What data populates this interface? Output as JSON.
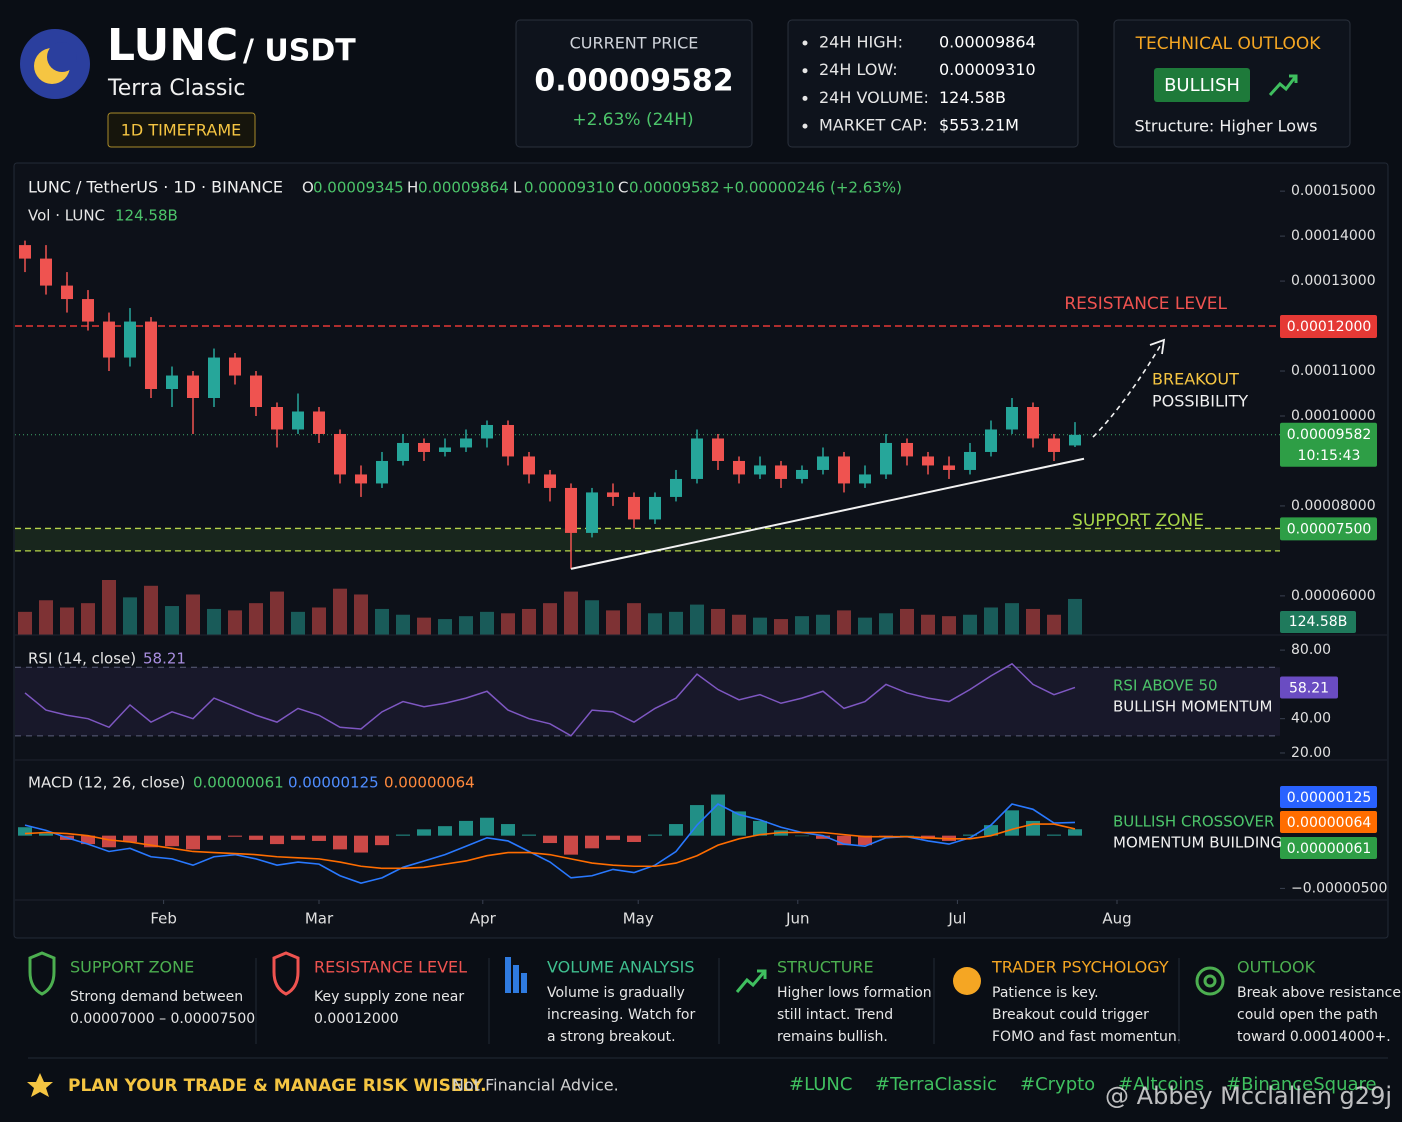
{
  "header": {
    "symbol": "LUNC",
    "pair": "/ USDT",
    "name": "Terra Classic",
    "timeframe": "1D TIMEFRAME"
  },
  "price_box": {
    "title": "CURRENT PRICE",
    "price": "0.00009582",
    "change": "+2.63% (24H)"
  },
  "stats": [
    {
      "label": "24H HIGH:",
      "value": "0.00009864"
    },
    {
      "label": "24H LOW:",
      "value": "0.00009310"
    },
    {
      "label": "24H VOLUME:",
      "value": "124.58B"
    },
    {
      "label": "MARKET CAP:",
      "value": "$553.21M"
    }
  ],
  "outlook": {
    "title": "TECHNICAL OUTLOOK",
    "badge": "BULLISH",
    "structure": "Structure: Higher Lows"
  },
  "chart_data": {
    "type": "candlestick",
    "title": "LUNC / TetherUS · 1D · BINANCE",
    "ohlc_legend": [
      {
        "key": "O",
        "value": "0.00009345"
      },
      {
        "key": "H",
        "value": "0.00009864"
      },
      {
        "key": "L",
        "value": "0.00009310"
      },
      {
        "key": "C",
        "value": "0.00009582"
      }
    ],
    "change": "+0.00000246 (+2.63%)",
    "up_color": "#26a69a",
    "down_color": "#ef5350",
    "candles": [
      [
        0.000138,
        0.000139,
        0.000132,
        0.000135
      ],
      [
        0.000135,
        0.000138,
        0.000127,
        0.000129
      ],
      [
        0.000129,
        0.000132,
        0.000123,
        0.000126
      ],
      [
        0.000126,
        0.000128,
        0.000119,
        0.000121
      ],
      [
        0.000121,
        0.000123,
        0.00011,
        0.000113
      ],
      [
        0.000113,
        0.000124,
        0.000111,
        0.000121
      ],
      [
        0.000121,
        0.000122,
        0.000104,
        0.000106
      ],
      [
        0.000106,
        0.000111,
        0.000102,
        0.000109
      ],
      [
        0.000109,
        0.00011,
        9.6e-05,
        0.000104
      ],
      [
        0.000104,
        0.000115,
        0.000102,
        0.000113
      ],
      [
        0.000113,
        0.000114,
        0.000107,
        0.000109
      ],
      [
        0.000109,
        0.00011,
        0.0001,
        0.000102
      ],
      [
        0.000102,
        0.000103,
        9.3e-05,
        9.7e-05
      ],
      [
        9.7e-05,
        0.000105,
        9.6e-05,
        0.000101
      ],
      [
        0.000101,
        0.000102,
        9.4e-05,
        9.6e-05
      ],
      [
        9.6e-05,
        9.7e-05,
        8.5e-05,
        8.7e-05
      ],
      [
        8.7e-05,
        8.9e-05,
        8.2e-05,
        8.5e-05
      ],
      [
        8.5e-05,
        9.2e-05,
        8.4e-05,
        9e-05
      ],
      [
        9e-05,
        9.6e-05,
        8.9e-05,
        9.4e-05
      ],
      [
        9.4e-05,
        9.5e-05,
        9e-05,
        9.2e-05
      ],
      [
        9.2e-05,
        9.5e-05,
        9.1e-05,
        9.3e-05
      ],
      [
        9.3e-05,
        9.7e-05,
        9.2e-05,
        9.5e-05
      ],
      [
        9.5e-05,
        9.9e-05,
        9.3e-05,
        9.8e-05
      ],
      [
        9.8e-05,
        9.9e-05,
        8.9e-05,
        9.1e-05
      ],
      [
        9.1e-05,
        9.2e-05,
        8.5e-05,
        8.7e-05
      ],
      [
        8.7e-05,
        8.8e-05,
        8.1e-05,
        8.4e-05
      ],
      [
        8.4e-05,
        8.5e-05,
        6.6e-05,
        7.4e-05
      ],
      [
        7.4e-05,
        8.4e-05,
        7.3e-05,
        8.3e-05
      ],
      [
        8.3e-05,
        8.5e-05,
        8e-05,
        8.2e-05
      ],
      [
        8.2e-05,
        8.3e-05,
        7.5e-05,
        7.7e-05
      ],
      [
        7.7e-05,
        8.3e-05,
        7.6e-05,
        8.2e-05
      ],
      [
        8.2e-05,
        8.8e-05,
        8.1e-05,
        8.6e-05
      ],
      [
        8.6e-05,
        9.7e-05,
        8.5e-05,
        9.5e-05
      ],
      [
        9.5e-05,
        9.6e-05,
        8.8e-05,
        9e-05
      ],
      [
        9e-05,
        9.1e-05,
        8.5e-05,
        8.7e-05
      ],
      [
        8.7e-05,
        9.1e-05,
        8.6e-05,
        8.9e-05
      ],
      [
        8.9e-05,
        9e-05,
        8.4e-05,
        8.6e-05
      ],
      [
        8.6e-05,
        8.9e-05,
        8.5e-05,
        8.8e-05
      ],
      [
        8.8e-05,
        9.3e-05,
        8.7e-05,
        9.1e-05
      ],
      [
        9.1e-05,
        9.2e-05,
        8.3e-05,
        8.5e-05
      ],
      [
        8.5e-05,
        8.9e-05,
        8.4e-05,
        8.7e-05
      ],
      [
        8.7e-05,
        9.6e-05,
        8.6e-05,
        9.4e-05
      ],
      [
        9.4e-05,
        9.5e-05,
        8.9e-05,
        9.1e-05
      ],
      [
        9.1e-05,
        9.2e-05,
        8.7e-05,
        8.9e-05
      ],
      [
        8.9e-05,
        9.1e-05,
        8.6e-05,
        8.8e-05
      ],
      [
        8.8e-05,
        9.4e-05,
        8.7e-05,
        9.2e-05
      ],
      [
        9.2e-05,
        9.9e-05,
        9.1e-05,
        9.7e-05
      ],
      [
        9.7e-05,
        0.000104,
        9.6e-05,
        0.000102
      ],
      [
        0.000102,
        0.000103,
        9.3e-05,
        9.5e-05
      ],
      [
        9.5e-05,
        9.6e-05,
        9e-05,
        9.2e-05
      ],
      [
        9.345e-05,
        9.864e-05,
        9.31e-05,
        9.582e-05
      ]
    ],
    "last_price_time": "10:15:43",
    "xticks": [
      {
        "value": 6.6,
        "label": "Feb"
      },
      {
        "value": 14,
        "label": "Mar"
      },
      {
        "value": 21.8,
        "label": "Apr"
      },
      {
        "value": 29.2,
        "label": "May"
      },
      {
        "value": 36.8,
        "label": "Jun"
      },
      {
        "value": 44.4,
        "label": "Jul"
      },
      {
        "value": 52,
        "label": "Aug"
      }
    ],
    "ylim": [
      5.13e-05,
      0.0001547
    ],
    "yticks": [
      {
        "value": 0.00015,
        "label": "0.00015000"
      },
      {
        "value": 0.00014,
        "label": "0.00014000"
      },
      {
        "value": 0.00013,
        "label": "0.00013000"
      },
      {
        "value": 0.00011,
        "label": "0.00011000"
      },
      {
        "value": 0.0001,
        "label": "0.00010000"
      },
      {
        "value": 8e-05,
        "label": "0.00008000"
      },
      {
        "value": 6e-05,
        "label": "0.00006000"
      }
    ],
    "grid": false,
    "annotations": {
      "resistance": {
        "text": "RESISTANCE LEVEL",
        "value": 0.00012,
        "label": "0.00012000"
      },
      "support": {
        "text": "SUPPORT ZONE",
        "values": [
          7e-05,
          7.5e-05
        ],
        "label": "0.00007500"
      },
      "breakout": [
        "BREAKOUT",
        "POSSIBILITY"
      ],
      "trendline": {
        "from": [
          26,
          6.6e-05
        ],
        "to": [
          52,
          9.05e-05
        ]
      }
    },
    "volume": {
      "title": "Vol · LUNC",
      "last_label": "124.58B",
      "values": [
        80,
        120,
        95,
        110,
        190,
        130,
        170,
        100,
        140,
        90,
        85,
        110,
        150,
        80,
        95,
        160,
        140,
        90,
        70,
        60,
        55,
        65,
        80,
        75,
        90,
        110,
        150,
        120,
        85,
        110,
        75,
        80,
        105,
        90,
        70,
        60,
        55,
        65,
        70,
        85,
        60,
        75,
        90,
        70,
        65,
        70,
        95,
        110,
        90,
        70,
        124.58
      ]
    },
    "rsi": {
      "title": "RSI (14, close)",
      "color": "#7e57c2",
      "values": [
        55,
        45,
        42,
        40,
        35,
        48,
        38,
        44,
        40,
        52,
        47,
        42,
        38,
        46,
        42,
        35,
        34,
        44,
        50,
        47,
        49,
        52,
        56,
        45,
        40,
        37,
        30,
        45,
        44,
        38,
        46,
        52,
        66,
        57,
        51,
        54,
        49,
        52,
        56,
        46,
        50,
        60,
        55,
        52,
        50,
        57,
        65,
        72,
        60,
        54,
        58.21
      ],
      "ylim": [
        15.9,
        85.9
      ],
      "yticks": [
        {
          "value": 80,
          "label": "80.00"
        },
        {
          "value": 40,
          "label": "40.00"
        },
        {
          "value": 20,
          "label": "20.00"
        }
      ],
      "levels": [
        70,
        30
      ],
      "note": [
        "RSI ABOVE 50",
        "BULLISH MOMENTUM"
      ]
    },
    "macd": {
      "title": "MACD (12, 26, close)",
      "ylim": [
        -6.1e-06,
        6.7e-06
      ],
      "yticks": [
        {
          "value": -5e-06,
          "label": "−0.00000500"
        }
      ],
      "histogram": {
        "color": "#26a69a",
        "neg_color": "#ef5350",
        "last_label": "0.00000061",
        "values": [
          8e-07,
          2e-07,
          -4e-07,
          -8e-07,
          -1.1e-06,
          -6e-07,
          -1.1e-06,
          -1e-06,
          -1.3e-06,
          -4e-07,
          -1e-07,
          -4e-07,
          -8e-07,
          -4e-07,
          -5e-07,
          -1.3e-06,
          -1.6e-06,
          -9e-07,
          1e-07,
          6e-07,
          9e-07,
          1.4e-06,
          1.7e-06,
          1.1e-06,
          1e-07,
          -7e-07,
          -1.8e-06,
          -1.2e-06,
          -4e-07,
          -6e-07,
          1e-07,
          1.1e-06,
          2.9e-06,
          3.9e-06,
          2.3e-06,
          1.4e-06,
          5e-07,
          0,
          -3e-07,
          -9e-07,
          -9e-07,
          -1e-07,
          0,
          -3e-07,
          -5e-07,
          1e-07,
          1e-06,
          2.4e-06,
          1.4e-06,
          1e-07,
          6.1e-07
        ]
      },
      "macd": {
        "color": "#2979ff",
        "last_label": "0.00000125",
        "values": [
          1e-06,
          5e-07,
          -2e-07,
          -8e-07,
          -1.5e-06,
          -1.2e-06,
          -2e-06,
          -2.2e-06,
          -2.8e-06,
          -2e-06,
          -1.8e-06,
          -2.2e-06,
          -2.8e-06,
          -2.5e-06,
          -2.7e-06,
          -3.8e-06,
          -4.5e-06,
          -4e-06,
          -3e-06,
          -2.4e-06,
          -1.8e-06,
          -1e-06,
          -2e-07,
          -5e-07,
          -1.5e-06,
          -2.5e-06,
          -4e-06,
          -3.8e-06,
          -3.2e-06,
          -3.5e-06,
          -2.8e-06,
          -1.5e-06,
          1e-06,
          3e-06,
          2e-06,
          1.5e-06,
          8e-07,
          3e-07,
          0,
          -8e-07,
          -1e-06,
          -2e-07,
          -1e-07,
          -5e-07,
          -8e-07,
          -2e-07,
          1e-06,
          3e-06,
          2.5e-06,
          1.2e-06,
          1.25e-06
        ]
      },
      "signal": {
        "color": "#ff6d00",
        "last_label": "0.00000064",
        "values": [
          2e-07,
          3e-07,
          2e-07,
          0,
          -4e-07,
          -6e-07,
          -9e-07,
          -1.2e-06,
          -1.5e-06,
          -1.6e-06,
          -1.7e-06,
          -1.8e-06,
          -2e-06,
          -2.1e-06,
          -2.2e-06,
          -2.5e-06,
          -2.9e-06,
          -3.1e-06,
          -3.1e-06,
          -3e-06,
          -2.7e-06,
          -2.4e-06,
          -1.9e-06,
          -1.6e-06,
          -1.6e-06,
          -1.8e-06,
          -2.2e-06,
          -2.6e-06,
          -2.8e-06,
          -2.9e-06,
          -2.9e-06,
          -2.6e-06,
          -1.9e-06,
          -9e-07,
          -3e-07,
          1e-07,
          3e-07,
          3e-07,
          3e-07,
          1e-07,
          -1e-07,
          -1e-07,
          -1e-07,
          -2e-07,
          -3e-07,
          -3e-07,
          0,
          6e-07,
          1.1e-06,
          1.1e-06,
          6.4e-07
        ]
      },
      "note": [
        "BULLISH CROSSOVER",
        "MOMENTUM BUILDING"
      ]
    }
  },
  "cards": [
    {
      "title": "SUPPORT ZONE",
      "color": "#4caf50",
      "lines": [
        "Strong demand between",
        "0.00007000 – 0.00007500"
      ]
    },
    {
      "title": "RESISTANCE LEVEL",
      "color": "#ef5350",
      "lines": [
        "Key supply zone near",
        "0.00012000"
      ]
    },
    {
      "title": "VOLUME ANALYSIS",
      "color": "#3fbf8f",
      "lines": [
        "Volume is gradually",
        "increasing.  Watch for",
        "a strong breakout."
      ]
    },
    {
      "title": "STRUCTURE",
      "color": "#4caf50",
      "lines": [
        "Higher lows formation",
        "still intact.  Trend",
        "remains bullish."
      ]
    },
    {
      "title": "TRADER PSYCHOLOGY",
      "color": "#f5a623",
      "lines": [
        "Patience is key.",
        "Breakout could trigger",
        "FOMO and fast momentun."
      ]
    },
    {
      "title": "OUTLOOK",
      "color": "#4caf50",
      "lines": [
        "Break above resistance",
        "could open the path",
        "toward 0.00014000+."
      ]
    }
  ],
  "footer": {
    "headline": "PLAN YOUR TRADE & MANAGE RISK WISELY.",
    "disclaimer": "Not Financial Advice.",
    "hashtags": [
      "#LUNC",
      "#TerraClassic",
      "#Crypto",
      "#Altcoins",
      "#BinanceSquare"
    ],
    "watermark": "@ Abbey Mcclallen g29j"
  }
}
